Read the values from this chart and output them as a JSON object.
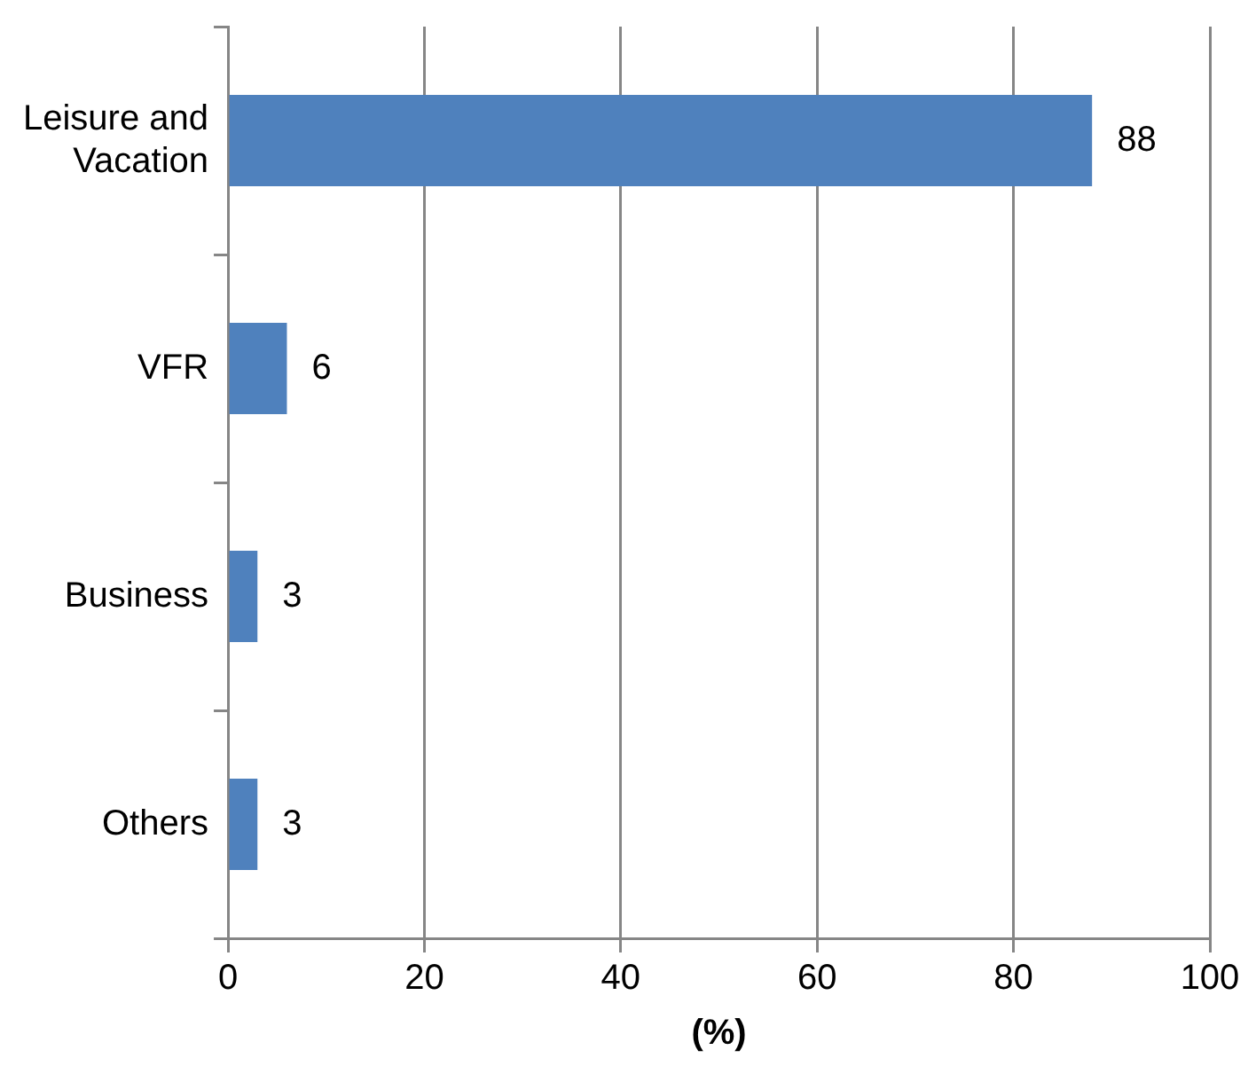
{
  "chart_data": {
    "type": "bar",
    "orientation": "horizontal",
    "categories": [
      "Leisure and Vacation",
      "VFR",
      "Business",
      "Others"
    ],
    "values": [
      88,
      6,
      3,
      3
    ],
    "color": "#4f81bd",
    "xlabel": "(%)",
    "xlim": [
      0,
      100
    ],
    "xticks": [
      0,
      20,
      40,
      60,
      80,
      100
    ],
    "grid": "x",
    "data_labels": true,
    "legend": false
  }
}
